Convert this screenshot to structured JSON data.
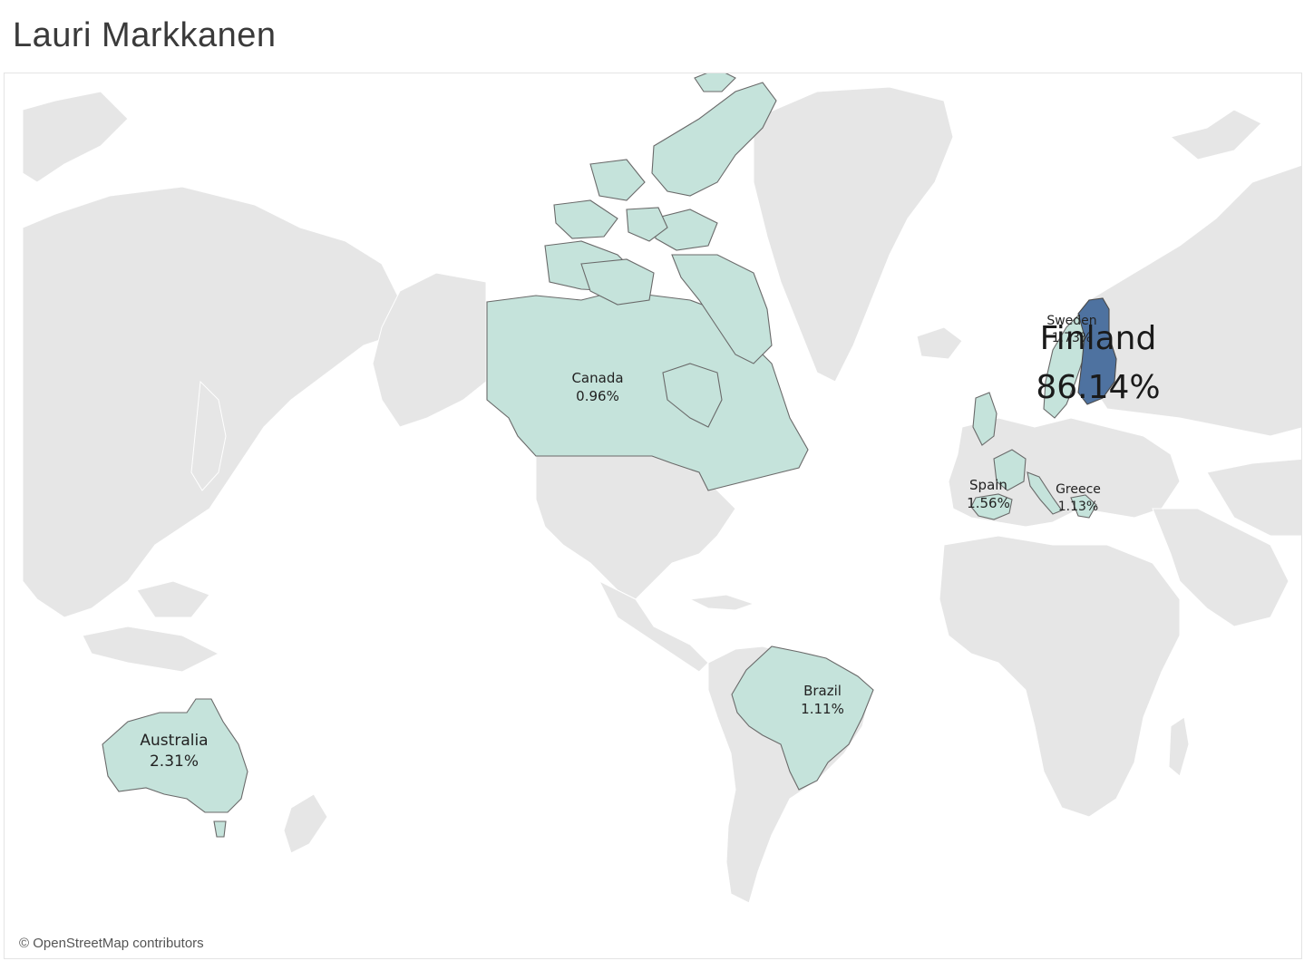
{
  "title": "Lauri Markkanen",
  "attribution": "© OpenStreetMap contributors",
  "colors": {
    "background": "#ffffff",
    "land": "#e6e6e6",
    "highlight": "#c5e3db",
    "highlight_strong": "#4e72a0",
    "border": "#6a6a6a"
  },
  "countries": [
    {
      "name": "Finland",
      "value": "86.14%"
    },
    {
      "name": "Australia",
      "value": "2.31%"
    },
    {
      "name": "Spain",
      "value": "1.56%"
    },
    {
      "name": "Sweden",
      "value": "1.73%"
    },
    {
      "name": "Greece",
      "value": "1.13%"
    },
    {
      "name": "Brazil",
      "value": "1.11%"
    },
    {
      "name": "Canada",
      "value": "0.96%"
    }
  ]
}
